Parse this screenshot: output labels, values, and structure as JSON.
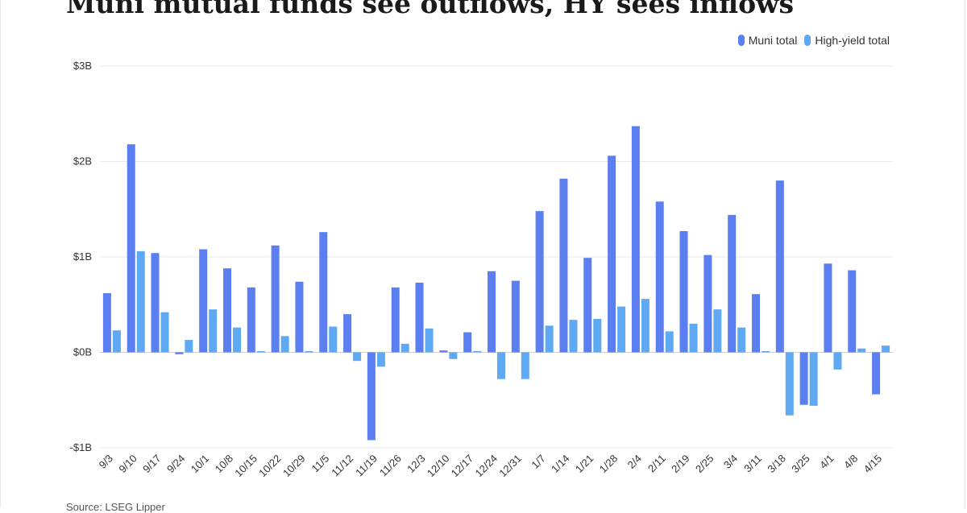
{
  "title": "Muni mutual funds see outflows, HY sees inflows",
  "source": "Source: LSEG Lipper",
  "colors": {
    "muni": "#5b7ef0",
    "high_yield": "#5fa8f2",
    "grid": "#e8e8e8",
    "zero_line": "#cfcfcf"
  },
  "chart_data": {
    "type": "bar",
    "title": "Muni mutual funds see outflows, HY sees inflows",
    "categories": [
      "9/3",
      "9/10",
      "9/17",
      "9/24",
      "10/1",
      "10/8",
      "10/15",
      "10/22",
      "10/29",
      "11/5",
      "11/12",
      "11/19",
      "11/26",
      "12/3",
      "12/10",
      "12/17",
      "12/24",
      "12/31",
      "1/7",
      "1/14",
      "1/21",
      "1/28",
      "2/4",
      "2/11",
      "2/19",
      "2/25",
      "3/4",
      "3/11",
      "3/18",
      "3/25",
      "4/1",
      "4/8",
      "4/15"
    ],
    "series": [
      {
        "name": "Muni total",
        "values": [
          0.62,
          2.18,
          1.04,
          -0.02,
          1.08,
          0.88,
          0.68,
          1.12,
          0.74,
          1.26,
          0.4,
          -0.92,
          0.68,
          0.73,
          0.02,
          0.21,
          0.85,
          0.75,
          1.48,
          1.82,
          0.99,
          2.06,
          2.37,
          1.58,
          1.27,
          1.02,
          1.44,
          0.61,
          1.8,
          -0.55,
          0.93,
          0.86,
          -0.44
        ]
      },
      {
        "name": "High-yield total",
        "values": [
          0.23,
          1.06,
          0.42,
          0.13,
          0.45,
          0.26,
          0.01,
          0.17,
          0.0,
          0.27,
          -0.09,
          -0.15,
          0.09,
          0.25,
          -0.07,
          0.01,
          -0.28,
          -0.28,
          0.28,
          0.34,
          0.35,
          0.48,
          0.56,
          0.22,
          0.3,
          0.45,
          0.26,
          0.01,
          -0.66,
          -0.56,
          -0.18,
          0.04,
          0.07
        ]
      }
    ],
    "ylim": [
      -1,
      3
    ],
    "yticks": [
      3,
      2,
      1,
      0,
      -1
    ],
    "ytick_labels": [
      "$3B",
      "$2B",
      "$1B",
      "$0B",
      "-$1B"
    ],
    "xlabel": "",
    "ylabel": "",
    "grid": true,
    "legend_position": "top-right"
  }
}
